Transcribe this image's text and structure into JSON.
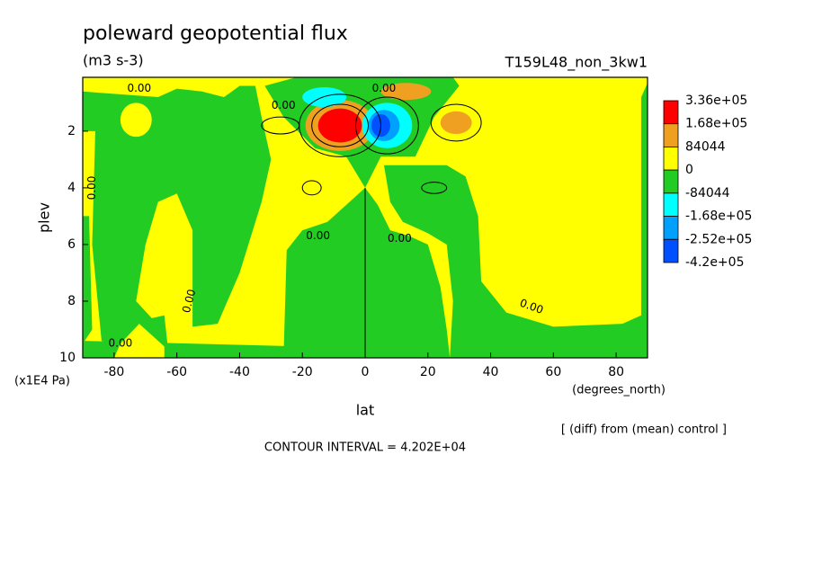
{
  "chart_data": {
    "type": "contour",
    "title": "poleward geopotential flux",
    "subtitle": "(m3 s-3)",
    "run_label": "T159L48_non_3kw1",
    "x_label": "lat",
    "x_unit": "(degrees_north)",
    "y_label": "plev",
    "y_unit": "(x1E4 Pa)",
    "note": "[ (diff) from (mean) control ]",
    "contour_interval": "CONTOUR INTERVAL = 4.202E+04",
    "xlim": [
      -90,
      90
    ],
    "ylim": [
      10,
      0.1
    ],
    "xticks": [
      -80,
      -60,
      -40,
      -20,
      0,
      20,
      40,
      60,
      80
    ],
    "yticks": [
      2,
      4,
      6,
      8,
      10
    ],
    "levels": [
      {
        "value": 336000,
        "label": "3.36e+05"
      },
      {
        "value": 168000,
        "label": "1.68e+05"
      },
      84044,
      0,
      -84044,
      {
        "value": -168000,
        "label": "-1.68e+05"
      },
      {
        "value": -252000,
        "label": "-2.52e+05"
      },
      {
        "value": -420000,
        "label": "-4.2e+05"
      }
    ],
    "colors": [
      "#ff0000",
      "#f0a020",
      "#ffff00",
      "#22cc22",
      "#00ffff",
      "#00a0ff",
      "#0050ff"
    ],
    "contour_labels": [
      "0.00",
      "0.00",
      "0.00",
      "0.00",
      "0.00",
      "0.00",
      "0.00",
      "0.00",
      "0.00"
    ]
  }
}
